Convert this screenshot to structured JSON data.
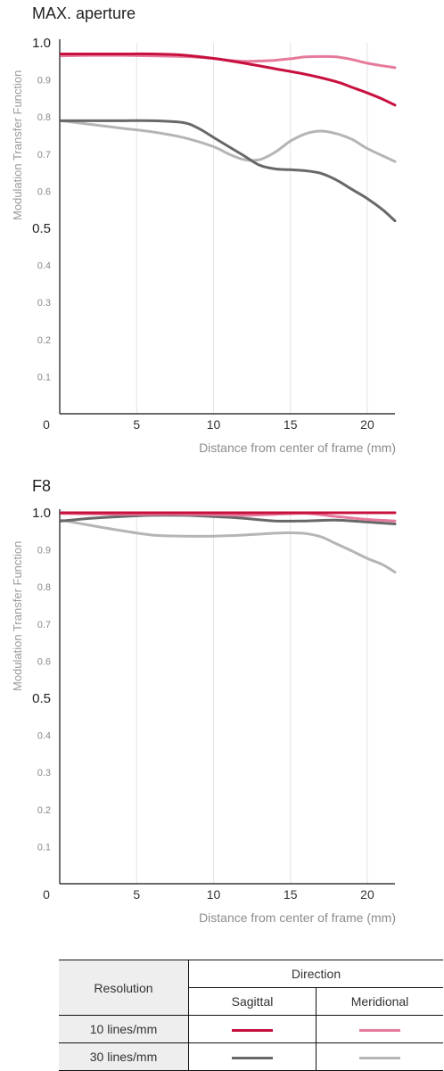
{
  "colors": {
    "sagittal_10": "#c8103e",
    "meridional_10": "#e57a9a",
    "sagittal_30": "#686868",
    "meridional_30": "#b5b5b5"
  },
  "chart_data": [
    {
      "type": "line",
      "title": "MAX. aperture",
      "ylabel": "Modulation Transfer Function",
      "xlabel": "Distance from center of frame (mm)",
      "xlim": [
        0,
        21.8
      ],
      "ylim": [
        0,
        1.0
      ],
      "x_ticks": [
        0,
        5,
        10,
        15,
        20
      ],
      "y_ticks": [
        "1.0",
        "0.9",
        "0.8",
        "0.7",
        "0.6",
        "0.5",
        "0.4",
        "0.3",
        "0.2",
        "0.1"
      ],
      "grid": true,
      "series": [
        {
          "key": "meridional_30",
          "x": [
            0.1,
            2,
            4,
            6,
            8,
            10,
            11,
            12,
            13,
            14,
            15,
            16,
            17,
            18,
            19,
            20,
            21.8
          ],
          "values": [
            0.79,
            0.78,
            0.77,
            0.76,
            0.745,
            0.72,
            0.7,
            0.685,
            0.685,
            0.705,
            0.735,
            0.755,
            0.762,
            0.755,
            0.74,
            0.715,
            0.68
          ]
        },
        {
          "key": "sagittal_30",
          "x": [
            0.1,
            2,
            4,
            6,
            8,
            9,
            10,
            11,
            12,
            13,
            14,
            15,
            16,
            17,
            18,
            19,
            20,
            21,
            21.8
          ],
          "values": [
            0.79,
            0.79,
            0.79,
            0.79,
            0.785,
            0.77,
            0.745,
            0.72,
            0.695,
            0.67,
            0.66,
            0.658,
            0.655,
            0.648,
            0.63,
            0.605,
            0.58,
            0.55,
            0.52
          ]
        },
        {
          "key": "meridional_10",
          "x": [
            0.1,
            2,
            4,
            6,
            8,
            10,
            11,
            12,
            13,
            14,
            15,
            16,
            17,
            18,
            19,
            20,
            21,
            21.8
          ],
          "values": [
            0.965,
            0.966,
            0.966,
            0.965,
            0.963,
            0.958,
            0.953,
            0.95,
            0.951,
            0.953,
            0.957,
            0.962,
            0.963,
            0.962,
            0.955,
            0.945,
            0.938,
            0.933
          ]
        },
        {
          "key": "sagittal_10",
          "x": [
            0.1,
            2,
            4,
            6,
            8,
            10,
            12,
            14,
            16,
            18,
            19,
            20,
            21,
            21.8
          ],
          "values": [
            0.97,
            0.97,
            0.97,
            0.97,
            0.967,
            0.958,
            0.945,
            0.93,
            0.915,
            0.895,
            0.88,
            0.865,
            0.848,
            0.832
          ]
        }
      ]
    },
    {
      "type": "line",
      "title": "F8",
      "ylabel": "Modulation Transfer Function",
      "xlabel": "Distance from center of frame (mm)",
      "xlim": [
        0,
        21.8
      ],
      "ylim": [
        0,
        1.0
      ],
      "x_ticks": [
        0,
        5,
        10,
        15,
        20
      ],
      "y_ticks": [
        "1.0",
        "0.9",
        "0.8",
        "0.7",
        "0.6",
        "0.5",
        "0.4",
        "0.3",
        "0.2",
        "0.1"
      ],
      "grid": true,
      "series": [
        {
          "key": "meridional_30",
          "x": [
            0.1,
            2,
            4,
            6,
            8,
            10,
            12,
            14,
            15,
            16,
            17,
            18,
            19,
            20,
            21,
            21.8
          ],
          "values": [
            0.98,
            0.966,
            0.952,
            0.94,
            0.937,
            0.937,
            0.94,
            0.945,
            0.946,
            0.944,
            0.935,
            0.916,
            0.897,
            0.877,
            0.86,
            0.84
          ]
        },
        {
          "key": "sagittal_30",
          "x": [
            0.1,
            2,
            4,
            6,
            8,
            10,
            12,
            14,
            16,
            18,
            20,
            21.8
          ],
          "values": [
            0.978,
            0.985,
            0.99,
            0.993,
            0.993,
            0.99,
            0.985,
            0.978,
            0.978,
            0.98,
            0.975,
            0.97
          ]
        },
        {
          "key": "meridional_10",
          "x": [
            0.1,
            2,
            4,
            6,
            8,
            10,
            12,
            14,
            16,
            18,
            20,
            21.8
          ],
          "values": [
            0.998,
            0.997,
            0.996,
            0.996,
            0.996,
            0.995,
            0.993,
            0.996,
            0.998,
            0.99,
            0.982,
            0.978
          ]
        },
        {
          "key": "sagittal_10",
          "x": [
            0.1,
            5,
            10,
            15,
            20,
            21.8
          ],
          "values": [
            1.0,
            1.0,
            1.0,
            1.0,
            1.0,
            1.0
          ]
        }
      ]
    }
  ],
  "legend": {
    "resolution_header": "Resolution",
    "direction_header": "Direction",
    "sagittal_header": "Sagittal",
    "meridional_header": "Meridional",
    "row_10": "10 lines/mm",
    "row_30": "30 lines/mm"
  }
}
